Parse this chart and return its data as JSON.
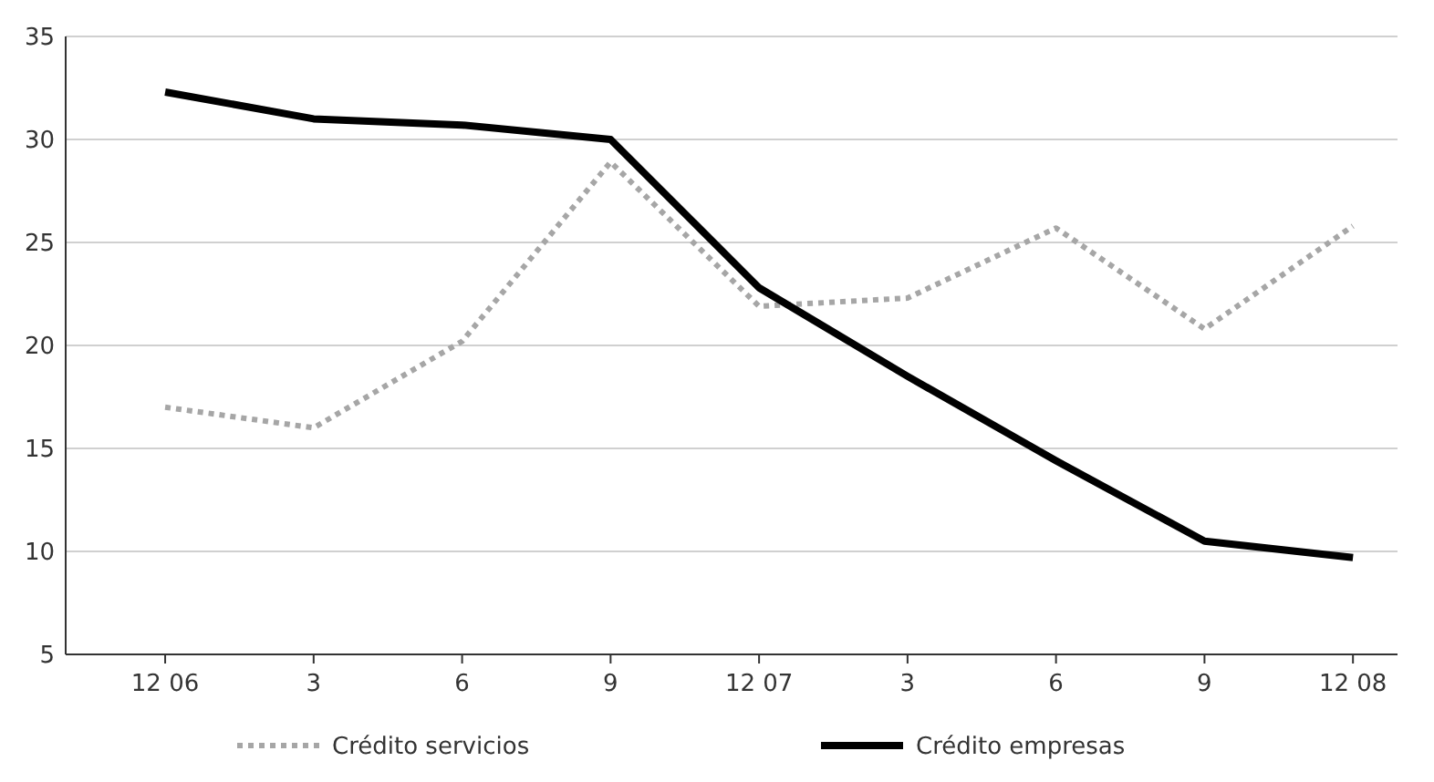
{
  "chart_data": {
    "type": "line",
    "categories": [
      "12 06",
      "3",
      "6",
      "9",
      "12 07",
      "3",
      "6",
      "9",
      "12 08"
    ],
    "series": [
      {
        "name": "Crédito servicios",
        "color": "#a6a6a6",
        "line_style": "dotted",
        "values": [
          17.0,
          16.0,
          20.2,
          28.9,
          21.9,
          22.3,
          25.7,
          20.8,
          25.8
        ]
      },
      {
        "name": "Crédito empresas",
        "color": "#000000",
        "line_style": "solid",
        "values": [
          32.3,
          31.0,
          30.7,
          30.0,
          22.8,
          18.5,
          14.4,
          10.5,
          9.7
        ]
      }
    ],
    "ylim": [
      5,
      35
    ],
    "yticks": [
      5,
      10,
      15,
      20,
      25,
      30,
      35
    ],
    "grid": "y",
    "legend": "bottom"
  }
}
